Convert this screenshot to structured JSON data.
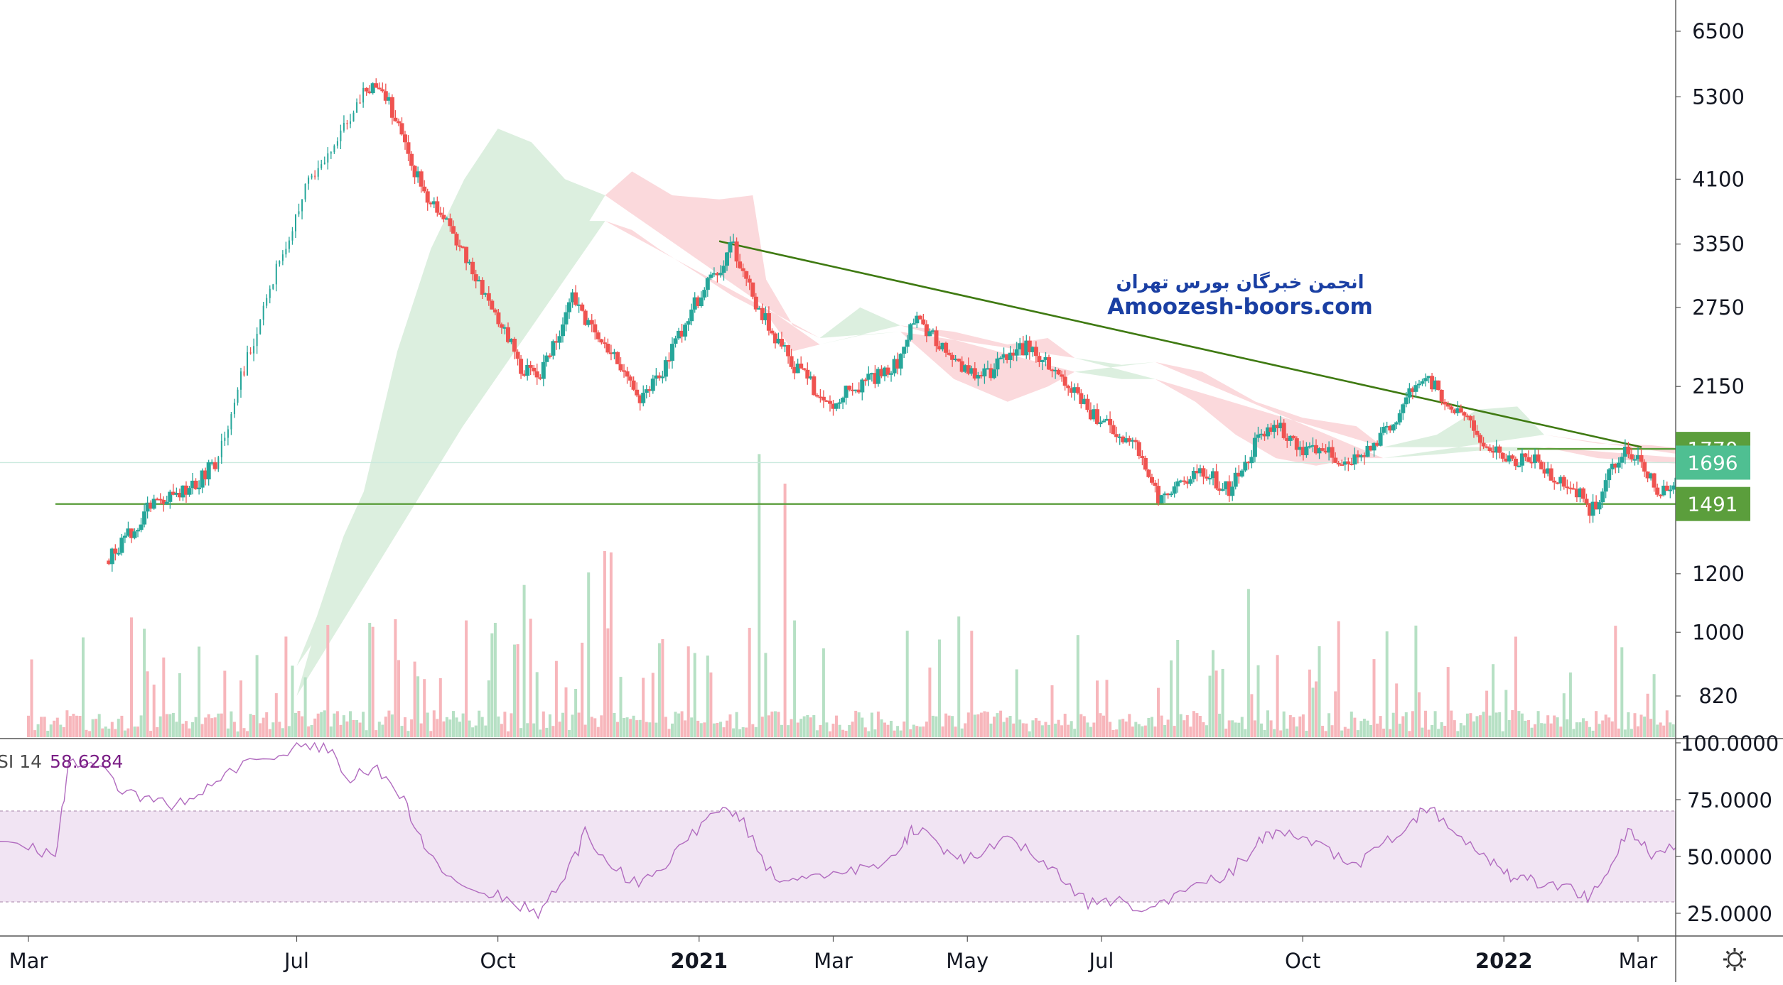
{
  "chart_data": {
    "type": "candlestick",
    "price_axis": {
      "scale": "log",
      "ticks": [
        820,
        1000,
        1200,
        1491,
        1696,
        1770,
        2150,
        2750,
        3350,
        4100,
        5300,
        6500
      ],
      "labels": [
        "820",
        "1000",
        "1200",
        "2150",
        "2750",
        "3350",
        "4100",
        "5300",
        "6500"
      ]
    },
    "time_axis": {
      "labels": [
        "Mar",
        "Jul",
        "Oct",
        "2021",
        "Mar",
        "May",
        "Jul",
        "Oct",
        "2022",
        "Mar"
      ]
    },
    "price_labels": [
      {
        "value": 1770,
        "text": "1770",
        "color": "#5b9e3c"
      },
      {
        "value": 1696,
        "text": "1696",
        "color": "#4fbf92"
      },
      {
        "value": 1491,
        "text": "1491",
        "color": "#5b9e3c"
      }
    ],
    "horizontal_lines": [
      1491,
      1770,
      1696
    ],
    "trend_line": {
      "from_date": "2020-11",
      "from_price": 3380,
      "to_date": "2022-03",
      "to_price": 1780
    },
    "rsi": {
      "label": "SI 14",
      "value": "58.6284",
      "ticks": [
        "100.0000",
        "75.0000",
        "50.0000",
        "25.0000"
      ],
      "upper": 70,
      "lower": 30
    },
    "watermark": {
      "line1": "انجمن خبرگان بورس تهران",
      "line2": "Amoozesh-boors.com"
    },
    "colors": {
      "up": "#26a69a",
      "down": "#ef5350",
      "trend": "#3f7a12",
      "level": "#5b9e3c",
      "rsi": "#9c27b0"
    }
  }
}
